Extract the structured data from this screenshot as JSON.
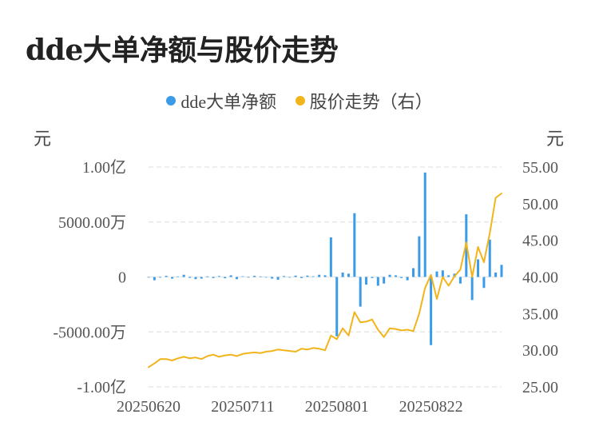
{
  "chart_data": {
    "type": "bar+line",
    "title": "dde大单净额与股价走势",
    "legend": [
      {
        "name": "dde大单净额",
        "color": "#3a9be8"
      },
      {
        "name": "股价走势（右）",
        "color": "#f2b41b"
      }
    ],
    "legend_position": "top-center",
    "left_axis": {
      "unit_label": "元",
      "min": -10000,
      "max": 10000,
      "ticks": [
        {
          "value": 10000,
          "label": "1.00亿"
        },
        {
          "value": 5000,
          "label": "5000.00万"
        },
        {
          "value": 0,
          "label": "0"
        },
        {
          "value": -5000,
          "label": "-5000.00万"
        },
        {
          "value": -10000,
          "label": "-1.00亿"
        }
      ]
    },
    "right_axis": {
      "unit_label": "元",
      "min": 25,
      "max": 55,
      "ticks": [
        {
          "value": 55,
          "label": "55.00"
        },
        {
          "value": 50,
          "label": "50.00"
        },
        {
          "value": 45,
          "label": "45.00"
        },
        {
          "value": 40,
          "label": "40.00"
        },
        {
          "value": 35,
          "label": "35.00"
        },
        {
          "value": 30,
          "label": "30.00"
        },
        {
          "value": 25,
          "label": "25.00"
        }
      ]
    },
    "x_tick_labels": [
      {
        "index": 0,
        "label": "20250620"
      },
      {
        "index": 16,
        "label": "20250711"
      },
      {
        "index": 32,
        "label": "20250801"
      },
      {
        "index": 48,
        "label": "20250822"
      }
    ],
    "grid": "dashed-horizontal",
    "series": [
      {
        "name": "dde大单净额",
        "axis": "left",
        "kind": "bar",
        "values": [
          0,
          -300,
          0,
          100,
          -150,
          50,
          200,
          -80,
          -200,
          -150,
          50,
          -100,
          80,
          -120,
          150,
          -200,
          60,
          -40,
          100,
          50,
          -50,
          -150,
          -250,
          80,
          -60,
          120,
          -100,
          120,
          60,
          200,
          150,
          3600,
          -5400,
          400,
          300,
          5800,
          -2700,
          -700,
          -100,
          -800,
          -600,
          200,
          150,
          -100,
          -300,
          800,
          3700,
          9500,
          -6200,
          500,
          600,
          150,
          300,
          -600,
          5700,
          -2100,
          1600,
          -1000,
          3400,
          400,
          1100
        ]
      },
      {
        "name": "股价走势（右）",
        "axis": "right",
        "kind": "line",
        "values": [
          27.7,
          28.2,
          28.8,
          28.8,
          28.6,
          28.9,
          29.1,
          28.9,
          29.0,
          28.8,
          29.2,
          29.4,
          29.1,
          29.3,
          29.4,
          29.2,
          29.5,
          29.6,
          29.7,
          29.6,
          29.8,
          29.9,
          30.1,
          30.0,
          29.9,
          29.8,
          30.2,
          30.1,
          30.3,
          30.2,
          30.0,
          32.0,
          31.5,
          33.0,
          32.0,
          35.2,
          33.8,
          33.9,
          34.2,
          32.8,
          31.8,
          33.0,
          32.9,
          32.7,
          32.8,
          32.6,
          35.0,
          38.5,
          40.3,
          37.0,
          40.0,
          38.8,
          40.1,
          41.0,
          44.7,
          40.0,
          44.1,
          42.0,
          46.0,
          50.8,
          51.4
        ]
      }
    ]
  }
}
